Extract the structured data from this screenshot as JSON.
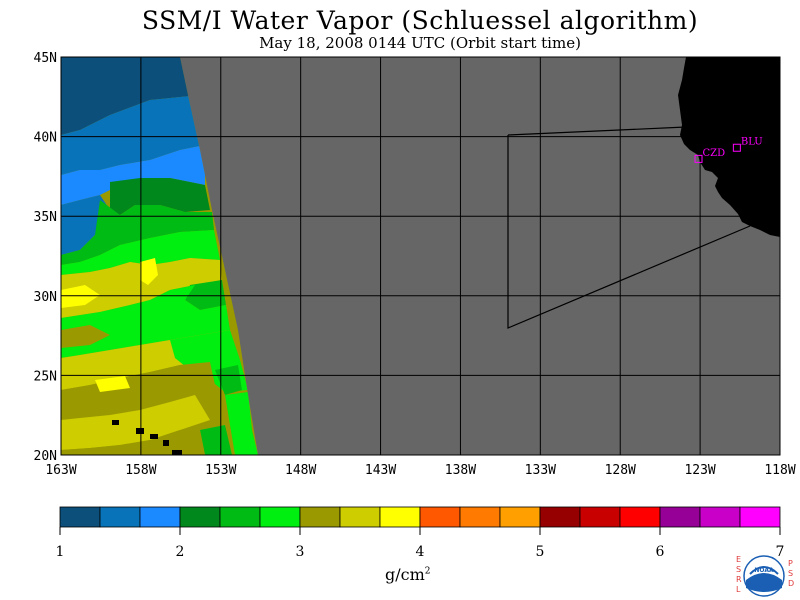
{
  "title": "SSM/I Water Vapor (Schluessel algorithm)",
  "subtitle": "May 18, 2008  0144 UTC  (Orbit start time)",
  "axes": {
    "lon_labels": [
      "163W",
      "158W",
      "153W",
      "148W",
      "143W",
      "138W",
      "133W",
      "128W",
      "123W",
      "118W"
    ],
    "lat_labels": [
      "45N",
      "40N",
      "35N",
      "30N",
      "25N",
      "20N"
    ],
    "lon_range": [
      -163,
      -118
    ],
    "lat_range": [
      20,
      45
    ]
  },
  "stations": [
    {
      "id": "CZD",
      "lon": -123.1,
      "lat": 38.6
    },
    {
      "id": "BLU",
      "lon": -120.7,
      "lat": 39.3
    }
  ],
  "colorbar": {
    "min": 1,
    "max": 7,
    "tick_labels": [
      "1",
      "2",
      "3",
      "4",
      "5",
      "6",
      "7"
    ],
    "colors": [
      "#0b4f7a",
      "#0873b8",
      "#1b89ff",
      "#00881c",
      "#00bb14",
      "#00ee10",
      "#9a9a00",
      "#cdcd00",
      "#ffff00",
      "#ff5800",
      "#ff7a00",
      "#ffa000",
      "#960000",
      "#c80000",
      "#ff0000",
      "#960096",
      "#c800c8",
      "#ff00ff"
    ],
    "units": "g/cm",
    "units_exp": "2"
  },
  "colors": {
    "no_data": "#666666",
    "land": "#000000",
    "station": "#ff00ff",
    "grid": "#000000"
  },
  "logo": {
    "left_letters": [
      "E",
      "S",
      "R",
      "L"
    ],
    "right_letters": [
      "P",
      "S",
      "D"
    ],
    "name": "NOAA"
  }
}
